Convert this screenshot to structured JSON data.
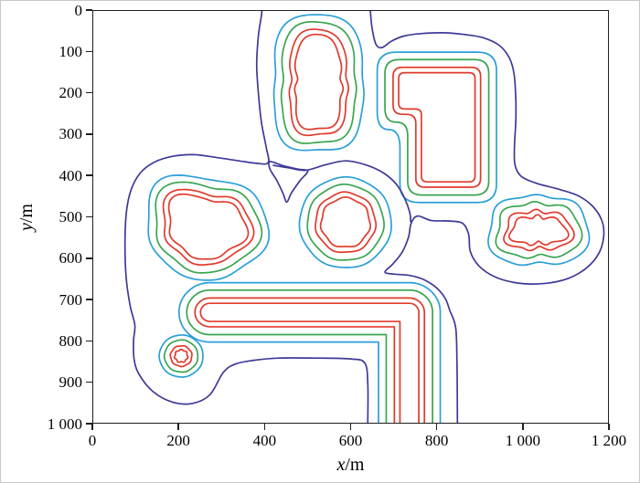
{
  "figure": {
    "background": "#ffffff",
    "frame_color": "#1f1f1f"
  },
  "axes": {
    "x": {
      "title_variable": "x",
      "title_unit": "/m",
      "tick_values": [
        0,
        200,
        400,
        600,
        800,
        1000,
        1200
      ],
      "tick_labels": [
        "0",
        "200",
        "400",
        "600",
        "800",
        "1 000",
        "1 200"
      ]
    },
    "y": {
      "title_variable": "y",
      "title_unit": "/m",
      "tick_values": [
        0,
        100,
        200,
        300,
        400,
        500,
        600,
        700,
        800,
        900,
        1000
      ],
      "tick_labels": [
        "0",
        "100",
        "200",
        "300",
        "400",
        "500",
        "600",
        "700",
        "800",
        "900",
        "1 000"
      ]
    }
  },
  "chart_data": {
    "type": "contour",
    "title": "",
    "xlabel": "x/m",
    "ylabel": "y/m",
    "xlim": [
      0,
      1200
    ],
    "ylim": [
      0,
      1000
    ],
    "y_axis_inverted": true,
    "grid": false,
    "legend": false,
    "description": "Nested equidistance contours around seven obstacle regions; innermost double red rings, then green, then light blue, with one merged outermost dark indigo contour wrapping groups of obstacles.",
    "default_offsets": [
      0,
      13,
      32,
      50
    ],
    "levels": [
      {
        "name": "inner-red",
        "color": "#e13a2d"
      },
      {
        "name": "outer-red",
        "color": "#e13a2d"
      },
      {
        "name": "green",
        "color": "#3aa550"
      },
      {
        "name": "cyan",
        "color": "#2b9fd8"
      }
    ],
    "outer_level": {
      "name": "indigo",
      "color": "#3e3a97"
    },
    "clusters": [
      {
        "name": "top-center-blob",
        "shape": "superellipse",
        "cx": 525,
        "cy": 176,
        "a": 53,
        "b": 114,
        "n": 3.4,
        "wobble": 3,
        "harmonics": [
          {
            "k": 3,
            "amp": 0.03,
            "ph": 1.0
          }
        ]
      },
      {
        "name": "top-right-L",
        "shape": "polygon",
        "corner_radius": 14,
        "vertices": [
          [
            712,
            150
          ],
          [
            890,
            150
          ],
          [
            890,
            415
          ],
          [
            765,
            415
          ],
          [
            765,
            238
          ],
          [
            712,
            238
          ]
        ]
      },
      {
        "name": "center-circle",
        "shape": "superellipse",
        "cx": 588,
        "cy": 514,
        "a": 57,
        "b": 60,
        "n": 2,
        "wobble": 2,
        "harmonics": []
      },
      {
        "name": "left-irregular-blob",
        "shape": "superellipse",
        "cx": 262,
        "cy": 524,
        "a": 84,
        "b": 78,
        "n": 2.3,
        "wobble": 3,
        "harmonics": [
          {
            "k": 2,
            "amp": 0.1,
            "ph": 0.7
          },
          {
            "k": 3,
            "amp": 0.09,
            "ph": 2.3
          },
          {
            "k": 5,
            "amp": 0.05,
            "ph": 0.2
          }
        ]
      },
      {
        "name": "right-blob",
        "shape": "superellipse",
        "cx": 1037,
        "cy": 533,
        "a": 64,
        "b": 32,
        "n": 3,
        "wobble": 4,
        "harmonics": [
          {
            "k": 3,
            "amp": 0.05,
            "ph": 0.5
          },
          {
            "k": 7,
            "amp": 0.03,
            "ph": 1.1
          }
        ]
      },
      {
        "name": "bottom-bar",
        "shape": "bar",
        "x1": 272,
        "x2": 737,
        "y": 732,
        "yend": 1000,
        "base_radius": 22
      },
      {
        "name": "small-bottom-circle",
        "shape": "superellipse",
        "cx": 205,
        "cy": 838,
        "a": 15,
        "b": 15,
        "n": 2,
        "wobble": 1.2,
        "harmonics": [],
        "offsets": [
          0,
          10,
          24,
          36
        ]
      }
    ],
    "outer_paths": [
      {
        "name": "outer-west",
        "closed": false,
        "points": [
          [
            640,
            1000
          ],
          [
            640,
            905
          ],
          [
            633,
            855
          ],
          [
            600,
            845
          ],
          [
            520,
            843
          ],
          [
            432,
            843
          ],
          [
            370,
            849
          ],
          [
            330,
            858
          ],
          [
            303,
            878
          ],
          [
            272,
            932
          ],
          [
            232,
            953
          ],
          [
            185,
            950
          ],
          [
            139,
            924
          ],
          [
            106,
            881
          ],
          [
            95,
            844
          ],
          [
            94,
            800
          ],
          [
            97,
            763
          ],
          [
            86,
            716
          ],
          [
            77,
            651
          ],
          [
            74,
            571
          ],
          [
            77,
            491
          ],
          [
            88,
            435
          ],
          [
            110,
            393
          ],
          [
            143,
            367
          ],
          [
            185,
            353
          ],
          [
            235,
            349
          ],
          [
            288,
            356
          ],
          [
            340,
            364
          ],
          [
            381,
            370
          ],
          [
            408,
            368
          ],
          [
            403,
            330
          ],
          [
            392,
            270
          ],
          [
            385,
            200
          ],
          [
            381,
            130
          ],
          [
            385,
            60
          ],
          [
            392,
            12
          ],
          [
            393,
            0
          ]
        ]
      },
      {
        "name": "outer-mid-saddle",
        "closed": false,
        "points": [
          [
            420,
            375
          ],
          [
            455,
            381
          ],
          [
            495,
            387
          ],
          [
            540,
            374
          ],
          [
            588,
            364
          ],
          [
            636,
            374
          ],
          [
            676,
            393
          ],
          [
            706,
            420
          ],
          [
            726,
            455
          ],
          [
            738,
            490
          ],
          [
            740,
            512
          ]
        ]
      },
      {
        "name": "outer-east",
        "closed": false,
        "points": [
          [
            646,
            0
          ],
          [
            650,
            42
          ],
          [
            659,
            81
          ],
          [
            673,
            89
          ],
          [
            696,
            73
          ],
          [
            724,
            61
          ],
          [
            764,
            55
          ],
          [
            814,
            53
          ],
          [
            864,
            57
          ],
          [
            909,
            65
          ],
          [
            947,
            84
          ],
          [
            970,
            114
          ],
          [
            981,
            153
          ],
          [
            985,
            211
          ],
          [
            985,
            269
          ],
          [
            982,
            327
          ],
          [
            983,
            373
          ],
          [
            997,
            401
          ],
          [
            1032,
            418
          ],
          [
            1082,
            432
          ],
          [
            1129,
            448
          ],
          [
            1164,
            474
          ],
          [
            1186,
            510
          ],
          [
            1190,
            547
          ],
          [
            1179,
            588
          ],
          [
            1150,
            624
          ],
          [
            1106,
            650
          ],
          [
            1050,
            662
          ],
          [
            991,
            661
          ],
          [
            937,
            646
          ],
          [
            899,
            619
          ],
          [
            879,
            584
          ],
          [
            875,
            542
          ],
          [
            860,
            515
          ],
          [
            826,
            510
          ],
          [
            788,
            509
          ],
          [
            756,
            498
          ],
          [
            741,
            516
          ],
          [
            735,
            549
          ],
          [
            720,
            586
          ],
          [
            698,
            615
          ],
          [
            680,
            634
          ],
          [
            700,
            639
          ],
          [
            728,
            641
          ],
          [
            750,
            645
          ],
          [
            774,
            654
          ],
          [
            801,
            673
          ],
          [
            821,
            699
          ],
          [
            831,
            727
          ],
          [
            845,
            770
          ],
          [
            848,
            860
          ],
          [
            849,
            1000
          ]
        ]
      },
      {
        "name": "outer-pocket",
        "closed": true,
        "points": [
          [
            412,
            366
          ],
          [
            443,
            376
          ],
          [
            477,
            384
          ],
          [
            500,
            389
          ],
          [
            482,
            412
          ],
          [
            462,
            442
          ],
          [
            451,
            464
          ],
          [
            442,
            442
          ],
          [
            427,
            410
          ],
          [
            412,
            384
          ]
        ]
      }
    ]
  }
}
